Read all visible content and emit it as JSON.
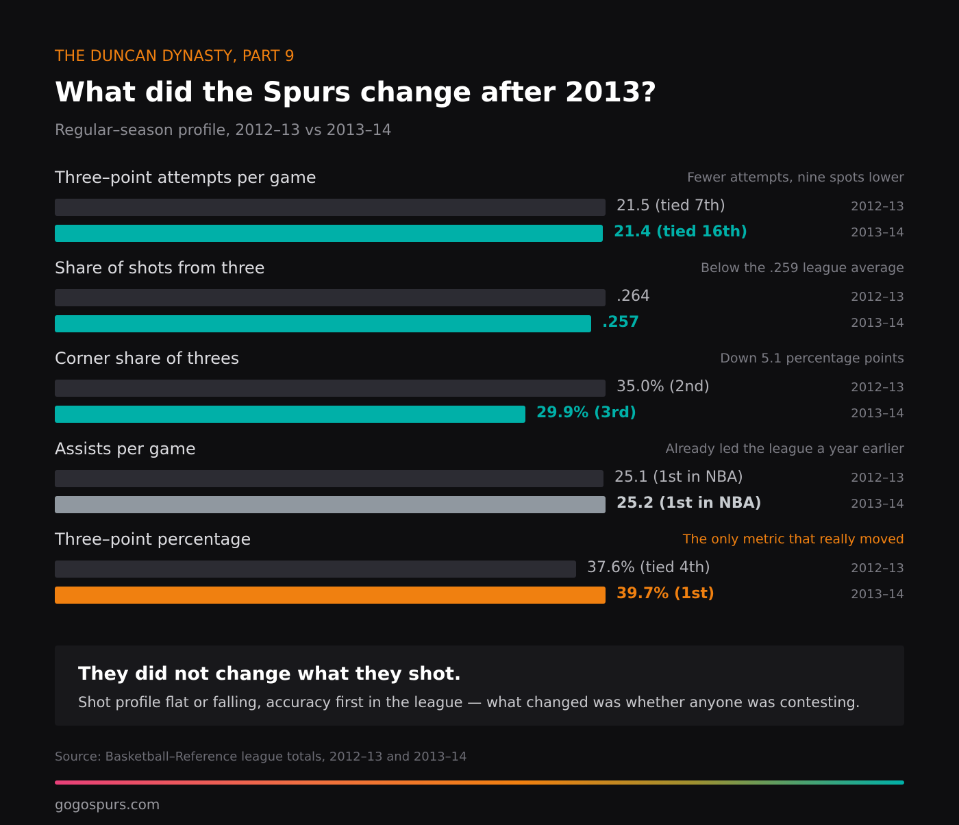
{
  "header": {
    "kicker": "THE DUNCAN DYNASTY, PART 9",
    "title": "What did the Spurs change after 2013?",
    "subtitle": "Regular–season profile, 2012–13 vs 2013–14"
  },
  "colors": {
    "previous": "#2c2c33",
    "teal": "#00b0a8",
    "grey": "#9098a0",
    "orange": "#f08010"
  },
  "chart_data": {
    "type": "bar",
    "orientation": "horizontal",
    "series": [
      {
        "name": "2012–13"
      },
      {
        "name": "2013–14"
      }
    ],
    "metrics": [
      {
        "label": "Three–point attempts per game",
        "note": "Fewer attempts, nine spots lower",
        "note_highlight": false,
        "accent": "teal",
        "prev": {
          "season": "2012–13",
          "value": 21.5,
          "display": "21.5 (tied 7th)"
        },
        "cur": {
          "season": "2013–14",
          "value": 21.4,
          "display": "21.4 (tied 16th)"
        }
      },
      {
        "label": "Share of shots from three",
        "note": "Below the .259 league average",
        "note_highlight": false,
        "accent": "teal",
        "prev": {
          "season": "2012–13",
          "value": 0.264,
          "display": ".264"
        },
        "cur": {
          "season": "2013–14",
          "value": 0.257,
          "display": ".257"
        }
      },
      {
        "label": "Corner share of threes",
        "note": "Down 5.1 percentage points",
        "note_highlight": false,
        "accent": "teal",
        "prev": {
          "season": "2012–13",
          "value": 35.0,
          "display": "35.0% (2nd)"
        },
        "cur": {
          "season": "2013–14",
          "value": 29.9,
          "display": "29.9% (3rd)"
        }
      },
      {
        "label": "Assists per game",
        "note": "Already led the league a year earlier",
        "note_highlight": false,
        "accent": "grey",
        "prev": {
          "season": "2012–13",
          "value": 25.1,
          "display": "25.1 (1st in NBA)"
        },
        "cur": {
          "season": "2013–14",
          "value": 25.2,
          "display": "25.2 (1st in NBA)"
        }
      },
      {
        "label": "Three–point percentage",
        "note": "The only metric that really moved",
        "note_highlight": true,
        "accent": "orange",
        "prev": {
          "season": "2012–13",
          "value": 37.6,
          "display": "37.6% (tied 4th)"
        },
        "cur": {
          "season": "2013–14",
          "value": 39.7,
          "display": "39.7% (1st)"
        }
      }
    ]
  },
  "callout": {
    "title": "They did not change what they shot.",
    "body": "Shot profile flat or falling, accuracy first in the league — what changed was whether anyone was contesting."
  },
  "footer": {
    "source": "Source: Basketball–Reference league totals, 2012–13 and 2013–14",
    "site": "gogospurs.com"
  }
}
